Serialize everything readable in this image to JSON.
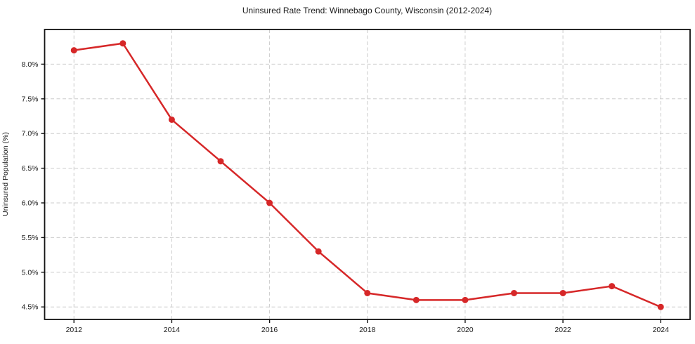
{
  "chart_data": {
    "type": "line",
    "title": "Uninsured Rate Trend: Winnebago County, Wisconsin (2012-2024)",
    "xlabel": "",
    "ylabel": "Uninsured Population (%)",
    "x": [
      2012,
      2013,
      2014,
      2015,
      2016,
      2017,
      2018,
      2019,
      2020,
      2021,
      2022,
      2023,
      2024
    ],
    "values": [
      8.2,
      8.3,
      7.2,
      6.6,
      6.0,
      5.3,
      4.7,
      4.6,
      4.6,
      4.7,
      4.7,
      4.8,
      4.5
    ],
    "x_ticks": [
      2012,
      2014,
      2016,
      2018,
      2020,
      2022,
      2024
    ],
    "y_ticks": [
      4.5,
      5.0,
      5.5,
      6.0,
      6.5,
      7.0,
      7.5,
      8.0
    ],
    "y_tick_suffix": "%",
    "xlim": [
      2011.4,
      2024.6
    ],
    "ylim": [
      4.32,
      8.5
    ],
    "grid": true,
    "legend_position": "none",
    "line_color": "#d62728",
    "marker": "circle",
    "marker_radius": 4.5,
    "line_width": 2.5,
    "grid_color": "#cccccc",
    "spine_color": "#111111",
    "tick_text_color": "#1a1a1a",
    "background_color": "#ffffff"
  }
}
